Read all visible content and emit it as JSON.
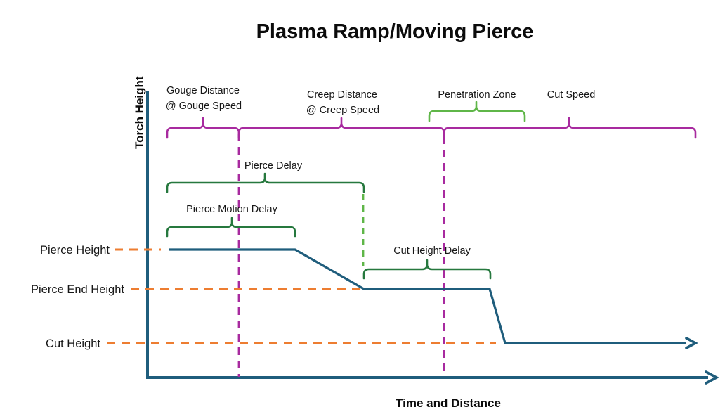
{
  "title": "Plasma Ramp/Moving Pierce",
  "axes": {
    "y_label": "Torch Height",
    "x_label": "Time and Distance"
  },
  "zones": {
    "gouge": {
      "line1": "Gouge Distance",
      "line2": "@ Gouge Speed"
    },
    "creep": {
      "line1": "Creep Distance",
      "line2": "@ Creep Speed"
    },
    "penetration": {
      "label": "Penetration Zone"
    },
    "cut_speed": {
      "label": "Cut Speed"
    }
  },
  "delays": {
    "pierce_delay": "Pierce Delay",
    "pierce_motion_delay": "Pierce Motion Delay",
    "cut_height_delay": "Cut Height Delay"
  },
  "heights": {
    "pierce_height": "Pierce Height",
    "pierce_end_height": "Pierce End Height",
    "cut_height": "Cut Height"
  },
  "profile": {
    "levels": [
      "Pierce Height",
      "Pierce End Height",
      "Cut Height"
    ],
    "sequence": [
      "hold at Pierce Height",
      "ramp down to Pierce End Height",
      "hold at Pierce End Height",
      "drop to Cut Height",
      "continue at Cut Height"
    ]
  },
  "colors": {
    "axis": "#1F5D7C",
    "profile_line": "#1F5D7C",
    "height_guides": "#ED7D31",
    "zone_braces": "#A82A9F",
    "delay_braces": "#26783E",
    "penetration_brace": "#5FB648"
  }
}
